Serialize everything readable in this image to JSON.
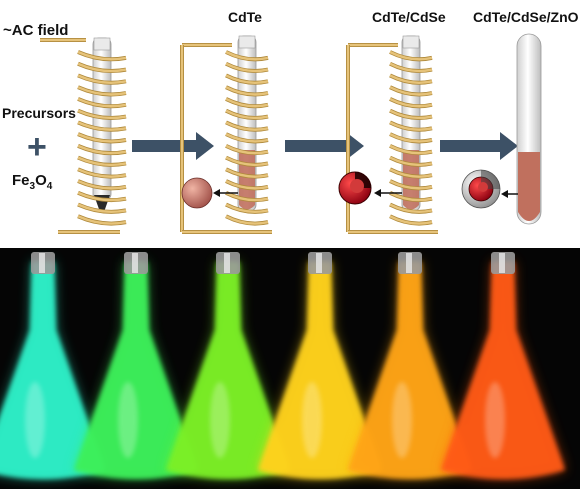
{
  "labels": {
    "field": "~AC field",
    "precursors": "Precursors",
    "plus": "+",
    "fe": "Fe",
    "fe_sub3": "3",
    "o": "O",
    "o_sub4": "4"
  },
  "stages": [
    {
      "label": "CdTe"
    },
    {
      "label": "CdTe/CdSe"
    },
    {
      "label": "CdTe/CdSe/ZnO"
    }
  ],
  "flasks": [
    {
      "color": "#2ef0c8"
    },
    {
      "color": "#3cf05a"
    },
    {
      "color": "#7cf028"
    },
    {
      "color": "#ffd21e"
    },
    {
      "color": "#ffa414"
    },
    {
      "color": "#ff5a14"
    }
  ],
  "colors": {
    "coil": "#e6c37a",
    "coil_dark": "#b08a3c",
    "arrow": "#3d5166",
    "pellet_liquid": "#c0705e",
    "photo_bg": "#050505"
  }
}
